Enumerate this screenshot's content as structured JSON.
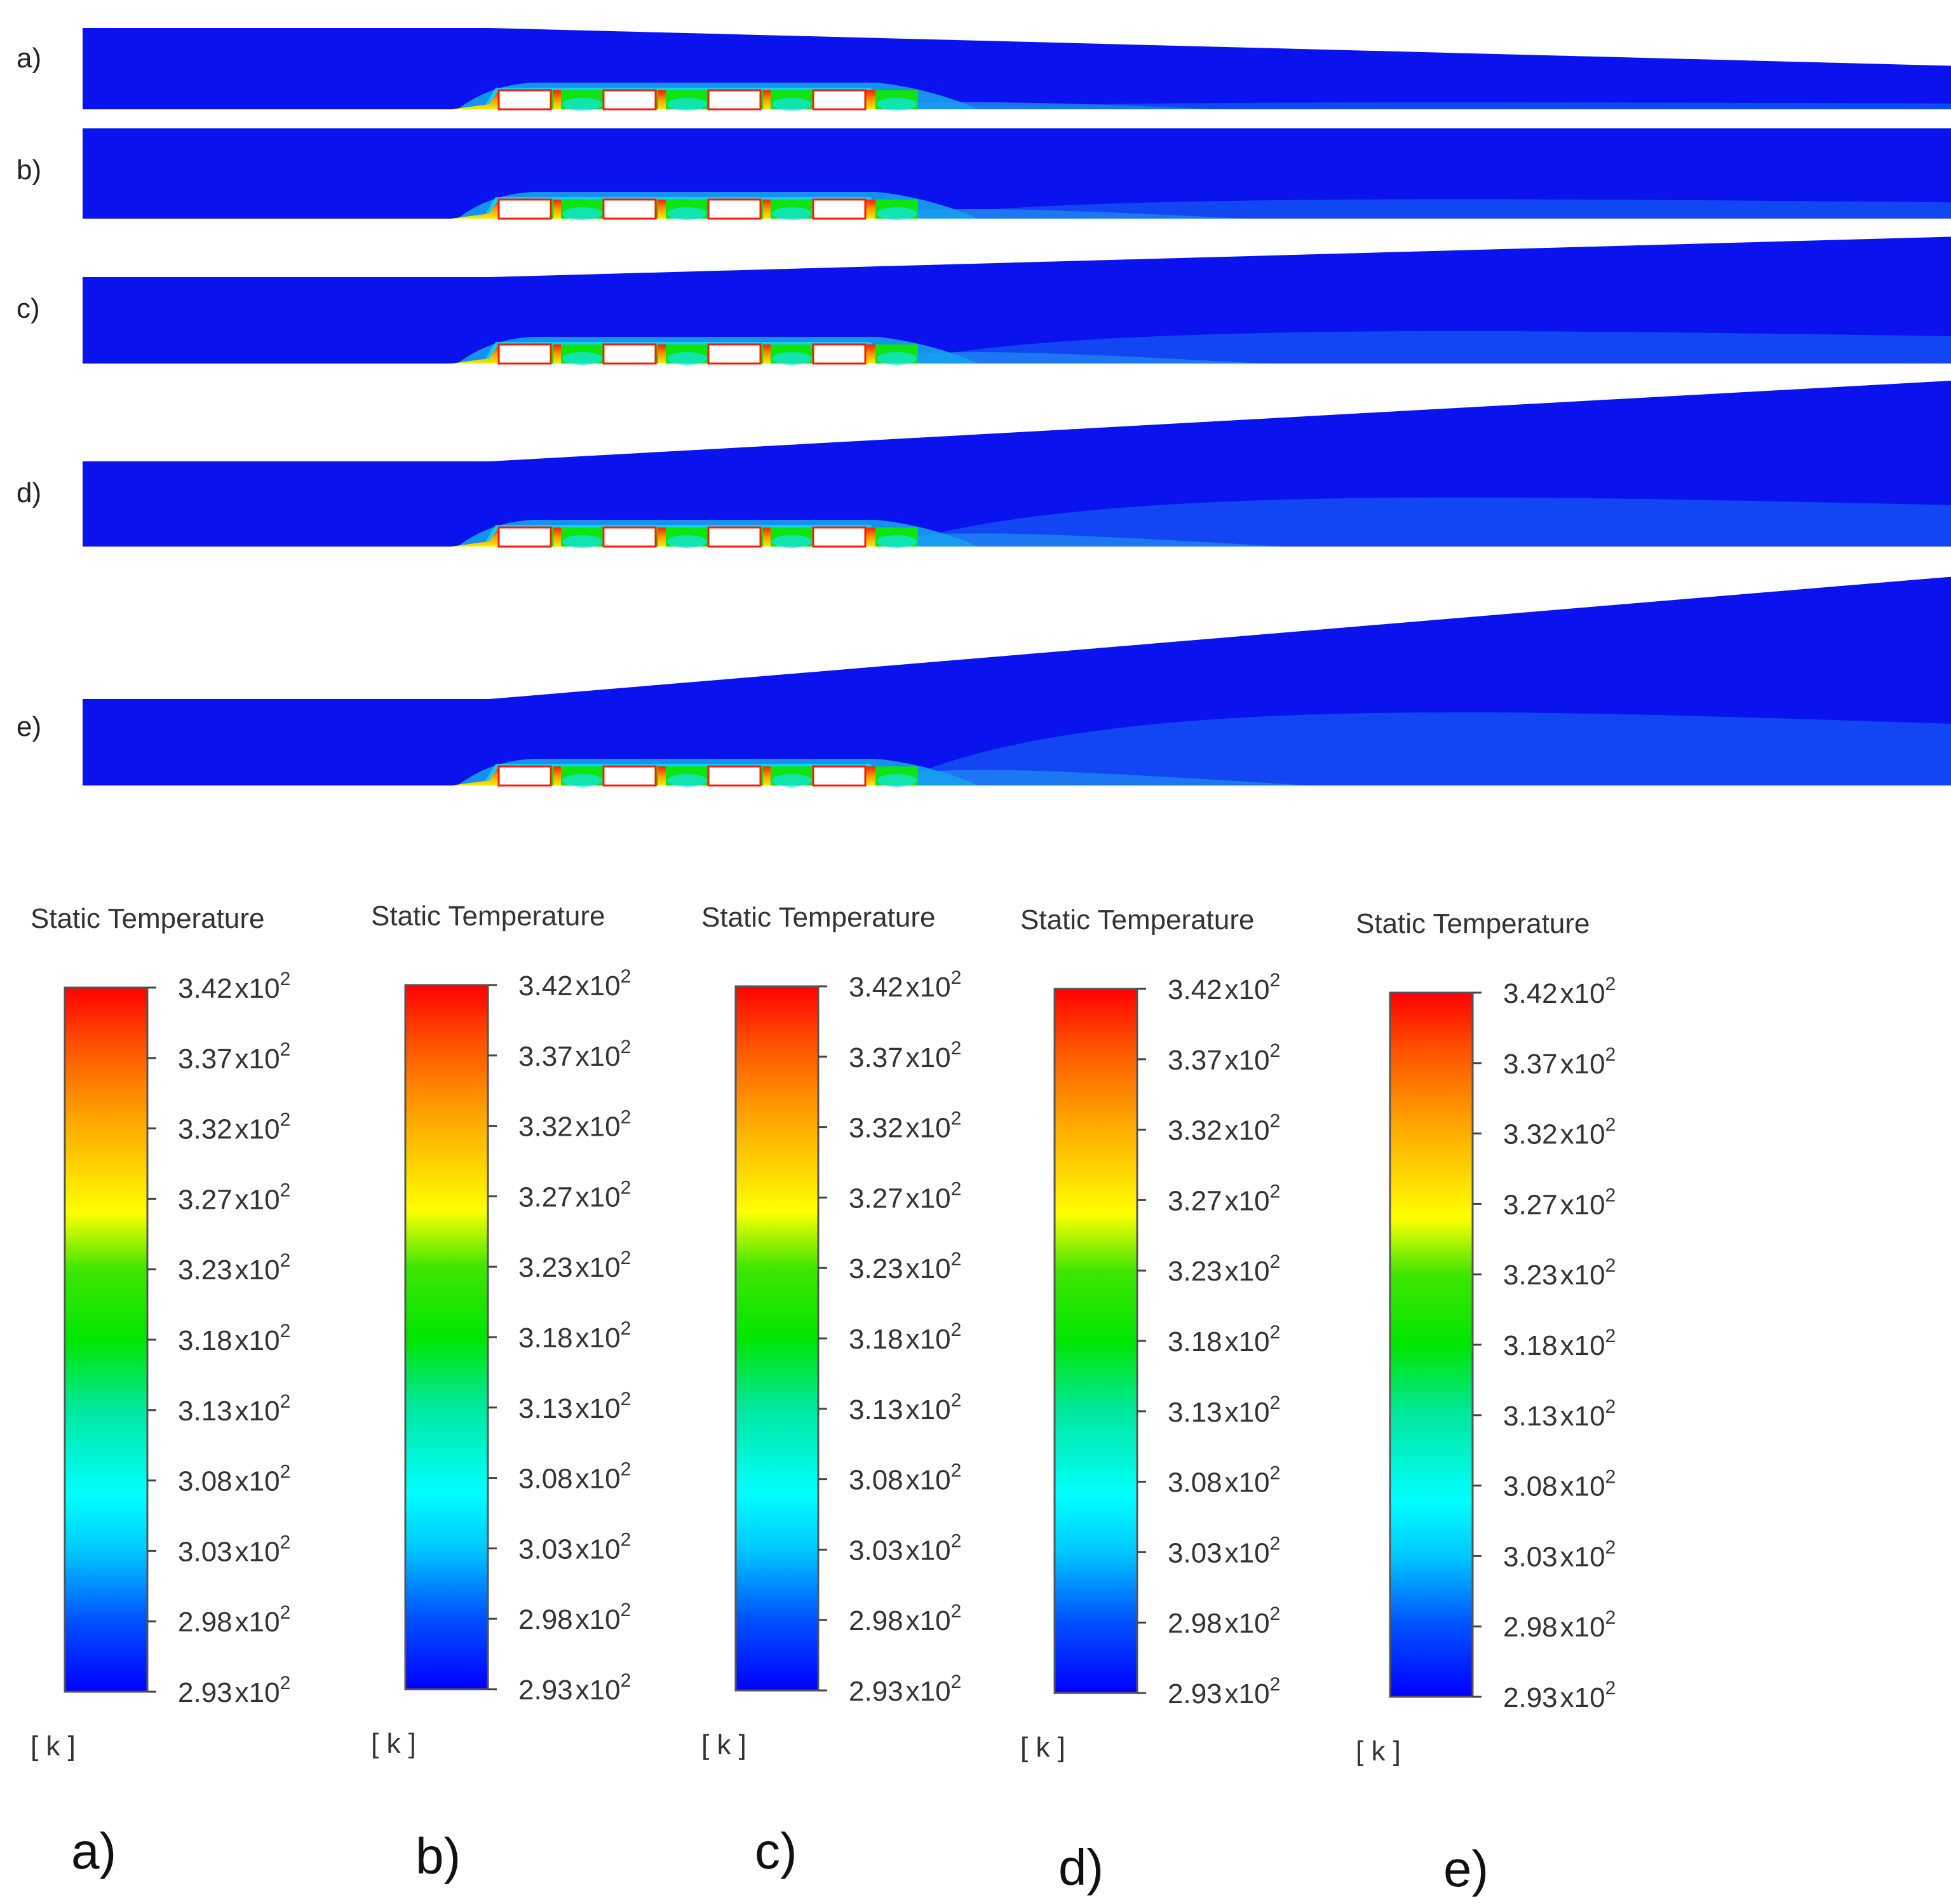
{
  "panels": [
    {
      "id": "a",
      "label": "a)"
    },
    {
      "id": "b",
      "label": "b)"
    },
    {
      "id": "c",
      "label": "c)"
    },
    {
      "id": "d",
      "label": "d)"
    },
    {
      "id": "e",
      "label": "e)"
    }
  ],
  "legends": [
    {
      "id": "a",
      "title": "Static Temperature",
      "unit": "[ k ]",
      "caption": "a)"
    },
    {
      "id": "b",
      "title": "Static Temperature",
      "unit": "[ k ]",
      "caption": "b)"
    },
    {
      "id": "c",
      "title": "Static Temperature",
      "unit": "[ k ]",
      "caption": "c)"
    },
    {
      "id": "d",
      "title": "Static Temperature",
      "unit": "[ k ]",
      "caption": "d)"
    },
    {
      "id": "e",
      "title": "Static Temperature",
      "unit": "[ k ]",
      "caption": "e)"
    }
  ],
  "scale_ticks": [
    {
      "mantissa": "3.42",
      "exp": "2"
    },
    {
      "mantissa": "3.37",
      "exp": "2"
    },
    {
      "mantissa": "3.32",
      "exp": "2"
    },
    {
      "mantissa": "3.27",
      "exp": "2"
    },
    {
      "mantissa": "3.23",
      "exp": "2"
    },
    {
      "mantissa": "3.18",
      "exp": "2"
    },
    {
      "mantissa": "3.13",
      "exp": "2"
    },
    {
      "mantissa": "3.08",
      "exp": "2"
    },
    {
      "mantissa": "3.03",
      "exp": "2"
    },
    {
      "mantissa": "2.98",
      "exp": "2"
    },
    {
      "mantissa": "2.93",
      "exp": "2"
    }
  ],
  "times_sign": "x10",
  "colors": {
    "cold": "#0a12ee",
    "mid_blue": "#1a58f0",
    "cyan": "#12e6f2",
    "green": "#0ee40e",
    "yellow": "#f0f000",
    "orange": "#ff9a00",
    "hot": "#ff1a0a"
  }
}
